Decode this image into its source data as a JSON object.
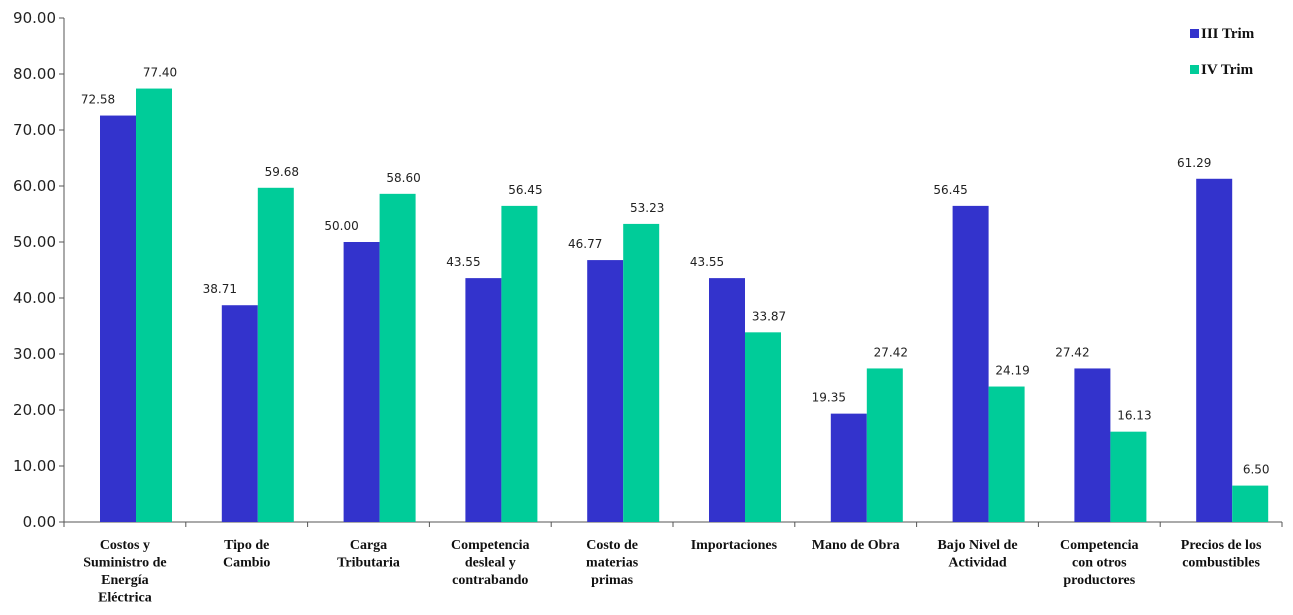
{
  "chart_data": {
    "type": "bar",
    "categories": [
      [
        "Costos y",
        "Suministro de",
        "Energía",
        "Eléctrica"
      ],
      [
        "Tipo de",
        "Cambio"
      ],
      [
        "Carga",
        "Tributaria"
      ],
      [
        "Competencia",
        "desleal y",
        "contrabando"
      ],
      [
        "Costo de",
        "materias",
        "primas"
      ],
      [
        "Importaciones"
      ],
      [
        "Mano de Obra"
      ],
      [
        "Bajo Nivel de",
        "Actividad"
      ],
      [
        "Competencia",
        "con otros",
        "productores"
      ],
      [
        "Precios de los",
        "combustibles"
      ]
    ],
    "series": [
      {
        "name": "III Trim",
        "color": "#3333cc",
        "values": [
          72.58,
          38.71,
          50.0,
          43.55,
          46.77,
          43.55,
          19.35,
          56.45,
          27.42,
          61.29
        ],
        "labels": [
          "72.58",
          "38.71",
          "50.00",
          "43.55",
          "46.77",
          "43.55",
          "19.35",
          "56.45",
          "27.42",
          "61.29"
        ]
      },
      {
        "name": "IV Trim",
        "color": "#00cc99",
        "values": [
          77.4,
          59.68,
          58.6,
          56.45,
          53.23,
          33.87,
          27.42,
          24.19,
          16.13,
          6.5
        ],
        "labels": [
          "77.40",
          "59.68",
          "58.60",
          "56.45",
          "53.23",
          "33.87",
          "27.42",
          "24.19",
          "16.13",
          "6.50"
        ]
      }
    ],
    "yticks": [
      "0.00",
      "10.00",
      "20.00",
      "30.00",
      "40.00",
      "50.00",
      "60.00",
      "70.00",
      "80.00",
      "90.00"
    ],
    "ylim": [
      0,
      90
    ],
    "grid": false,
    "legend_position": "top-right"
  }
}
